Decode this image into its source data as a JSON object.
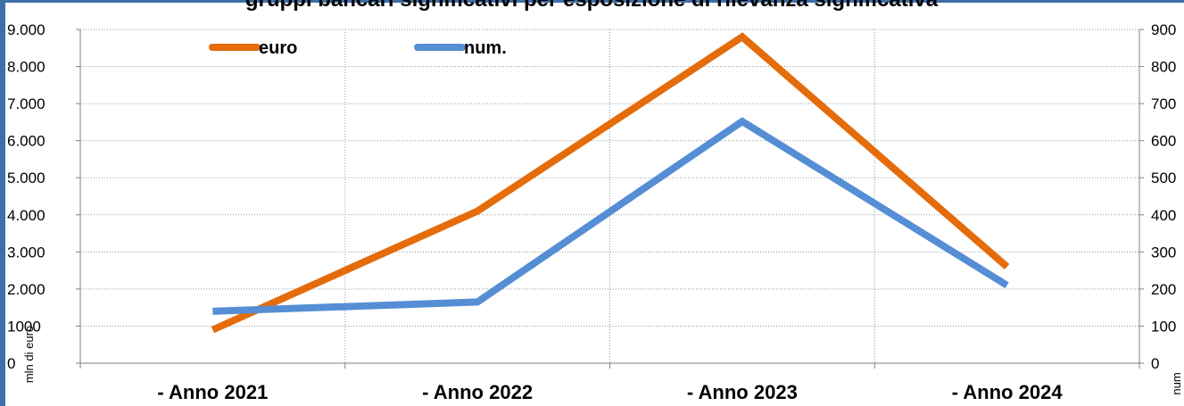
{
  "chart_data": {
    "type": "line",
    "title": "gruppi bancari significativi per esposizione di rilevanza significativa",
    "categories": [
      "- Anno 2021",
      "- Anno 2022",
      "- Anno 2023",
      "- Anno 2024"
    ],
    "series": [
      {
        "name": "euro",
        "axis": "left",
        "color": "#e46c0a",
        "values": [
          900,
          4100,
          8800,
          2600
        ]
      },
      {
        "name": "num.",
        "axis": "right",
        "color": "#558ed5",
        "values": [
          140,
          165,
          652,
          210
        ]
      }
    ],
    "y_left": {
      "label": "mln di  euro",
      "ylim": [
        0,
        9000
      ],
      "ticks": [
        {
          "v": 0,
          "t": "0"
        },
        {
          "v": 1000,
          "t": "1000"
        },
        {
          "v": 2000,
          "t": "2.000"
        },
        {
          "v": 3000,
          "t": "3.000"
        },
        {
          "v": 4000,
          "t": "4.000"
        },
        {
          "v": 5000,
          "t": "5.000"
        },
        {
          "v": 6000,
          "t": "6.000"
        },
        {
          "v": 7000,
          "t": "7.000"
        },
        {
          "v": 8000,
          "t": "8.000"
        },
        {
          "v": 9000,
          "t": "9.000"
        }
      ]
    },
    "y_right": {
      "label": "num",
      "ylim": [
        0,
        900
      ],
      "ticks": [
        {
          "v": 0,
          "t": "0"
        },
        {
          "v": 100,
          "t": "100"
        },
        {
          "v": 200,
          "t": "200"
        },
        {
          "v": 300,
          "t": "300"
        },
        {
          "v": 400,
          "t": "400"
        },
        {
          "v": 500,
          "t": "500"
        },
        {
          "v": 600,
          "t": "600"
        },
        {
          "v": 700,
          "t": "700"
        },
        {
          "v": 800,
          "t": "800"
        },
        {
          "v": 900,
          "t": "900"
        }
      ]
    },
    "grid": true,
    "legend": "top-left"
  }
}
